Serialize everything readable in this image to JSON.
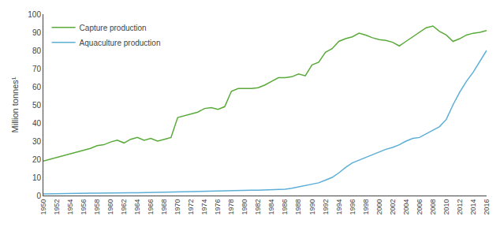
{
  "chart_data": {
    "type": "line",
    "ylabel": "Million tonnes¹",
    "x": [
      1950,
      1951,
      1952,
      1953,
      1954,
      1955,
      1956,
      1957,
      1958,
      1959,
      1960,
      1961,
      1962,
      1963,
      1964,
      1965,
      1966,
      1967,
      1968,
      1969,
      1970,
      1971,
      1972,
      1973,
      1974,
      1975,
      1976,
      1977,
      1978,
      1979,
      1980,
      1981,
      1982,
      1983,
      1984,
      1985,
      1986,
      1987,
      1988,
      1989,
      1990,
      1991,
      1992,
      1993,
      1994,
      1995,
      1996,
      1997,
      1998,
      1999,
      2000,
      2001,
      2002,
      2003,
      2004,
      2005,
      2006,
      2007,
      2008,
      2009,
      2010,
      2011,
      2012,
      2013,
      2014,
      2015,
      2016
    ],
    "series": [
      {
        "name": "Capture production",
        "color": "#5aaa3a",
        "values": [
          19.0,
          20.0,
          21.0,
          22.0,
          23.0,
          24.0,
          25.0,
          26.0,
          27.5,
          28.0,
          29.5,
          30.5,
          29.0,
          31.0,
          32.0,
          30.5,
          31.5,
          30.0,
          31.0,
          32.0,
          43.0,
          44.0,
          45.0,
          46.0,
          48.0,
          48.5,
          47.5,
          49.0,
          57.5,
          59.0,
          59.0,
          59.0,
          59.5,
          61.0,
          63.0,
          65.0,
          65.0,
          65.5,
          67.0,
          66.0,
          72.0,
          73.5,
          79.0,
          81.0,
          85.0,
          86.5,
          87.5,
          89.5,
          88.5,
          87.0,
          86.0,
          85.5,
          84.5,
          82.5,
          85.0,
          87.5,
          90.0,
          92.5,
          93.5,
          90.5,
          88.5,
          85.0,
          86.5,
          88.5,
          89.5,
          90.0,
          91.0
        ]
      },
      {
        "name": "Aquaculture production",
        "color": "#5bafd6",
        "values": [
          0.9,
          1.0,
          1.0,
          1.1,
          1.1,
          1.2,
          1.2,
          1.3,
          1.3,
          1.4,
          1.5,
          1.5,
          1.5,
          1.5,
          1.5,
          1.6,
          1.6,
          1.7,
          1.8,
          1.9,
          2.0,
          2.1,
          2.1,
          2.2,
          2.3,
          2.3,
          2.4,
          2.5,
          2.6,
          2.7,
          2.8,
          2.9,
          2.9,
          3.0,
          3.1,
          3.2,
          3.5,
          4.0,
          4.8,
          5.3,
          6.1,
          7.0,
          8.5,
          10.0,
          12.5,
          15.5,
          18.0,
          19.5,
          21.0,
          22.5,
          24.0,
          25.5,
          26.5,
          28.0,
          30.0,
          31.5,
          32.0,
          34.0,
          36.0,
          38.0,
          42.0,
          50.0,
          57.0,
          63.0,
          68.0,
          74.0,
          80.0
        ]
      }
    ],
    "xlim": [
      1950,
      2016
    ],
    "xticks": [
      1950,
      1952,
      1954,
      1956,
      1958,
      1960,
      1962,
      1964,
      1966,
      1968,
      1970,
      1972,
      1974,
      1976,
      1978,
      1980,
      1982,
      1984,
      1986,
      1988,
      1990,
      1992,
      1994,
      1996,
      1998,
      2000,
      2002,
      2004,
      2006,
      2008,
      2010,
      2012,
      2014,
      2016
    ],
    "ylim": [
      0,
      100
    ],
    "yticks": [
      0,
      10,
      20,
      30,
      40,
      50,
      60,
      70,
      80,
      90,
      100
    ],
    "grid": false,
    "legend": "upper left"
  }
}
